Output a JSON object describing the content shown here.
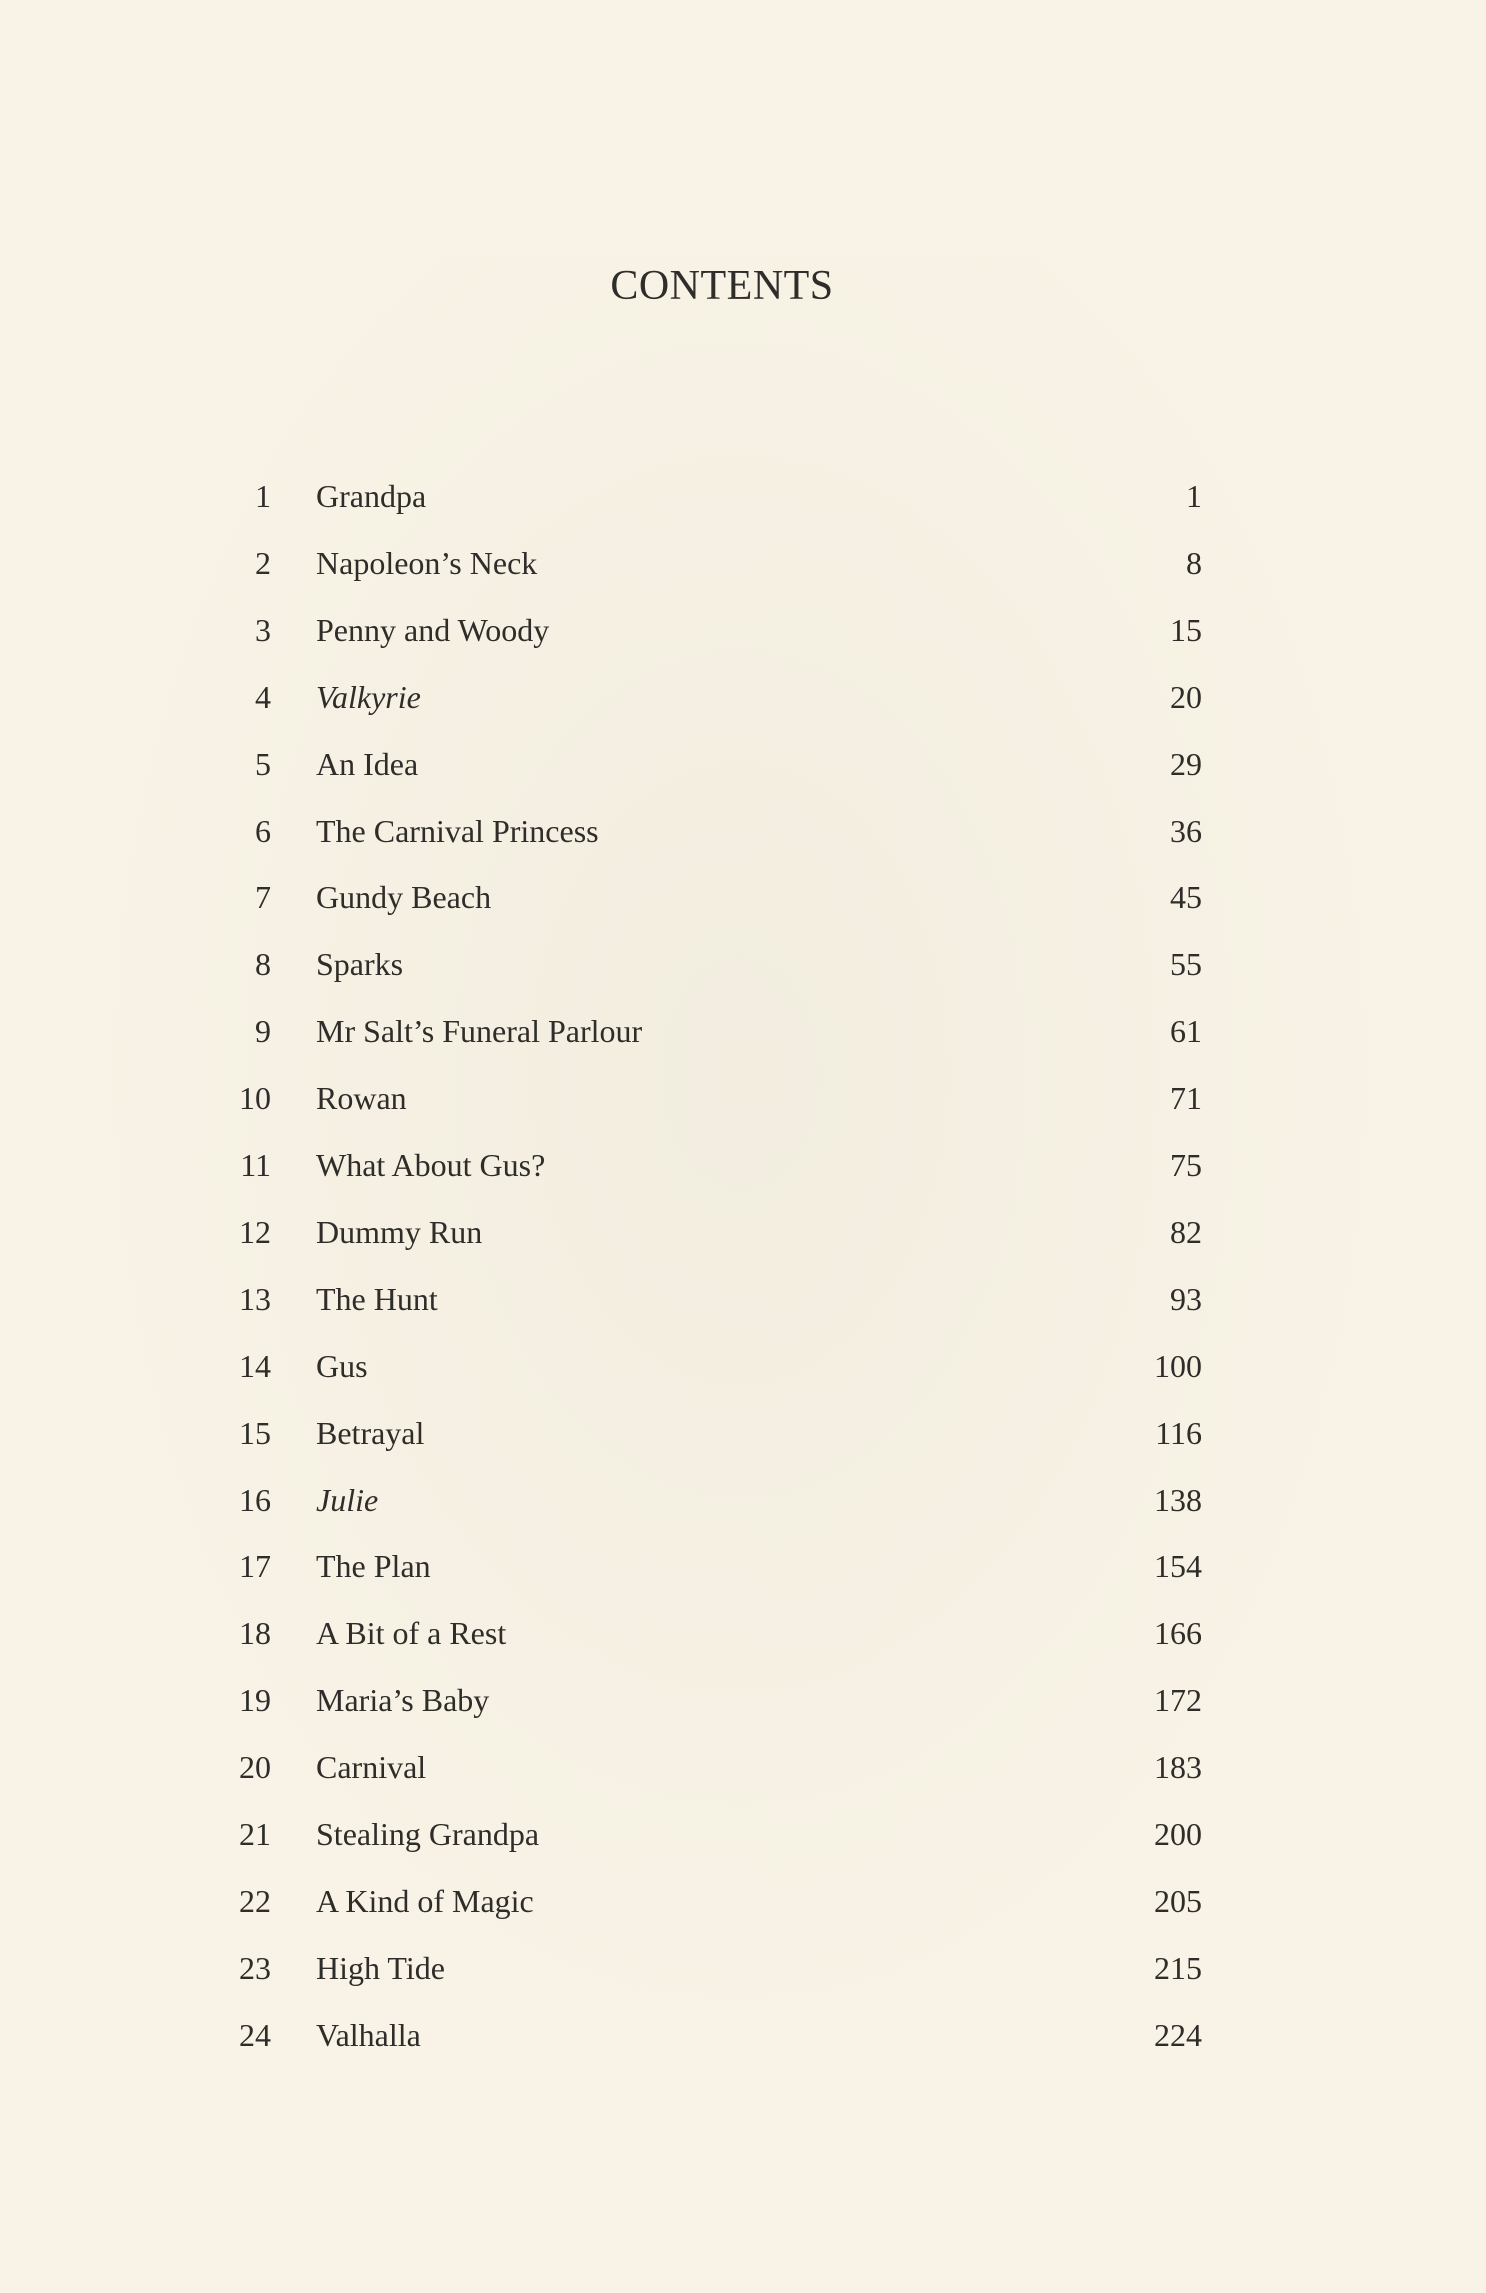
{
  "title": "CONTENTS",
  "chapters": [
    {
      "num": "1",
      "name": "Grandpa",
      "page": "1",
      "italic": false
    },
    {
      "num": "2",
      "name": "Napoleon’s Neck",
      "page": "8",
      "italic": false
    },
    {
      "num": "3",
      "name": "Penny and Woody",
      "page": "15",
      "italic": false
    },
    {
      "num": "4",
      "name": "Valkyrie",
      "page": "20",
      "italic": true
    },
    {
      "num": "5",
      "name": "An Idea",
      "page": "29",
      "italic": false
    },
    {
      "num": "6",
      "name": "The Carnival Princess",
      "page": "36",
      "italic": false
    },
    {
      "num": "7",
      "name": "Gundy Beach",
      "page": "45",
      "italic": false
    },
    {
      "num": "8",
      "name": "Sparks",
      "page": "55",
      "italic": false
    },
    {
      "num": "9",
      "name": "Mr Salt’s Funeral Parlour",
      "page": "61",
      "italic": false
    },
    {
      "num": "10",
      "name": "Rowan",
      "page": "71",
      "italic": false
    },
    {
      "num": "11",
      "name": "What About Gus?",
      "page": "75",
      "italic": false
    },
    {
      "num": "12",
      "name": "Dummy Run",
      "page": "82",
      "italic": false
    },
    {
      "num": "13",
      "name": "The Hunt",
      "page": "93",
      "italic": false
    },
    {
      "num": "14",
      "name": "Gus",
      "page": "100",
      "italic": false
    },
    {
      "num": "15",
      "name": "Betrayal",
      "page": "116",
      "italic": false
    },
    {
      "num": "16",
      "name": "Julie",
      "page": "138",
      "italic": true
    },
    {
      "num": "17",
      "name": "The Plan",
      "page": "154",
      "italic": false
    },
    {
      "num": "18",
      "name": "A Bit of a Rest",
      "page": "166",
      "italic": false
    },
    {
      "num": "19",
      "name": "Maria’s Baby",
      "page": "172",
      "italic": false
    },
    {
      "num": "20",
      "name": "Carnival",
      "page": "183",
      "italic": false
    },
    {
      "num": "21",
      "name": "Stealing Grandpa",
      "page": "200",
      "italic": false
    },
    {
      "num": "22",
      "name": "A Kind of Magic",
      "page": "205",
      "italic": false
    },
    {
      "num": "23",
      "name": "High Tide",
      "page": "215",
      "italic": false
    },
    {
      "num": "24",
      "name": "Valhalla",
      "page": "224",
      "italic": false
    }
  ]
}
